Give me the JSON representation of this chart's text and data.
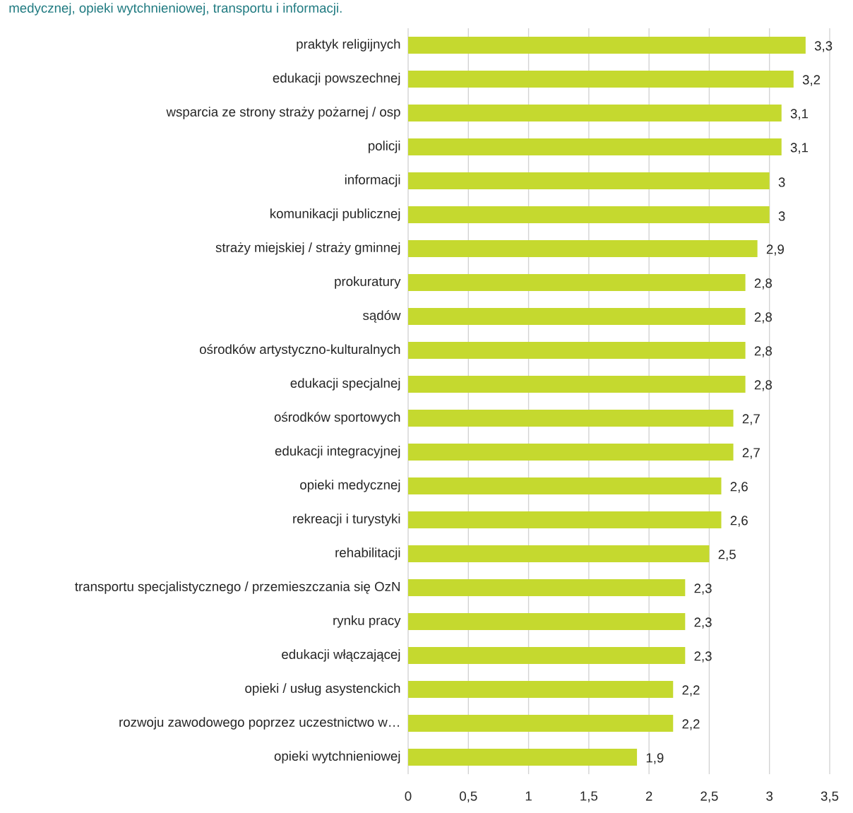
{
  "chart_data": {
    "type": "bar",
    "orientation": "horizontal",
    "annotations": [
      "medycznej, opieki wytchnieniowej, transportu i informacji."
    ],
    "categories": [
      "praktyk religijnych",
      "edukacji powszechnej",
      "wsparcia ze strony straży pożarnej / osp",
      "policji",
      "informacji",
      "komunikacji publicznej",
      "straży miejskiej / straży gminnej",
      "prokuratury",
      "sądów",
      "ośrodków artystyczno-kulturalnych",
      "edukacji specjalnej",
      "ośrodków sportowych",
      "edukacji integracyjnej",
      "opieki medycznej",
      "rekreacji i turystyki",
      "rehabilitacji",
      "transportu specjalistycznego / przemieszczania się OzN",
      "rynku pracy",
      "edukacji włączającej",
      "opieki / usług asystenckich",
      "rozwoju zawodowego poprzez uczestnictwo w…",
      "opieki wytchnieniowej"
    ],
    "values": [
      3.3,
      3.2,
      3.1,
      3.1,
      3.0,
      3.0,
      2.9,
      2.8,
      2.8,
      2.8,
      2.8,
      2.7,
      2.7,
      2.6,
      2.6,
      2.5,
      2.3,
      2.3,
      2.3,
      2.2,
      2.2,
      1.9
    ],
    "value_labels": [
      "3,3",
      "3,2",
      "3,1",
      "3,1",
      "3",
      "3",
      "2,9",
      "2,8",
      "2,8",
      "2,8",
      "2,8",
      "2,7",
      "2,7",
      "2,6",
      "2,6",
      "2,5",
      "2,3",
      "2,3",
      "2,3",
      "2,2",
      "2,2",
      "1,9"
    ],
    "color": "#c5d92f",
    "xlim": [
      0,
      3.5
    ],
    "xticks": [
      0,
      {
        "value": 0.5,
        "label": "0,5"
      },
      1,
      {
        "value": 1.5,
        "label": "1,5"
      },
      2,
      {
        "value": 2.5,
        "label": "2,5"
      },
      3,
      {
        "value": 3.5,
        "label": "3,5"
      }
    ],
    "grid": "x"
  }
}
